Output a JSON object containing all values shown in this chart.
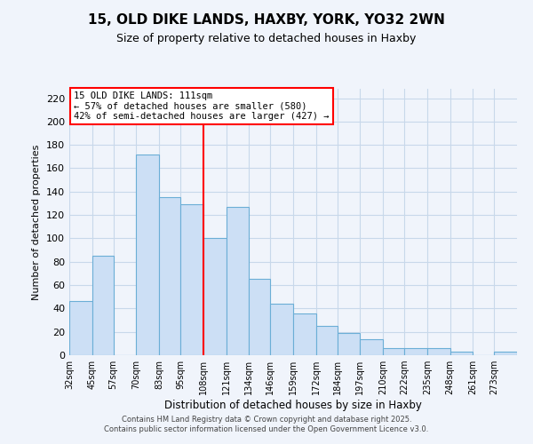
{
  "title": "15, OLD DIKE LANDS, HAXBY, YORK, YO32 2WN",
  "subtitle": "Size of property relative to detached houses in Haxby",
  "xlabel": "Distribution of detached houses by size in Haxby",
  "ylabel": "Number of detached properties",
  "bar_color": "#ccdff5",
  "bar_edge_color": "#6baed6",
  "grid_color": "#c8d8ea",
  "vline_x": 108,
  "vline_color": "red",
  "annotation_title": "15 OLD DIKE LANDS: 111sqm",
  "annotation_line1": "← 57% of detached houses are smaller (580)",
  "annotation_line2": "42% of semi-detached houses are larger (427) →",
  "annotation_box_edge": "red",
  "bin_edges": [
    32,
    45,
    57,
    70,
    83,
    95,
    108,
    121,
    134,
    146,
    159,
    172,
    184,
    197,
    210,
    222,
    235,
    248,
    261,
    273,
    286
  ],
  "bar_heights": [
    46,
    85,
    0,
    172,
    135,
    129,
    100,
    127,
    65,
    44,
    36,
    25,
    19,
    14,
    6,
    6,
    6,
    3,
    0,
    3
  ],
  "ylim": [
    0,
    228
  ],
  "yticks": [
    0,
    20,
    40,
    60,
    80,
    100,
    120,
    140,
    160,
    180,
    200,
    220
  ],
  "footer_line1": "Contains HM Land Registry data © Crown copyright and database right 2025.",
  "footer_line2": "Contains public sector information licensed under the Open Government Licence v3.0.",
  "background_color": "#f0f4fb"
}
